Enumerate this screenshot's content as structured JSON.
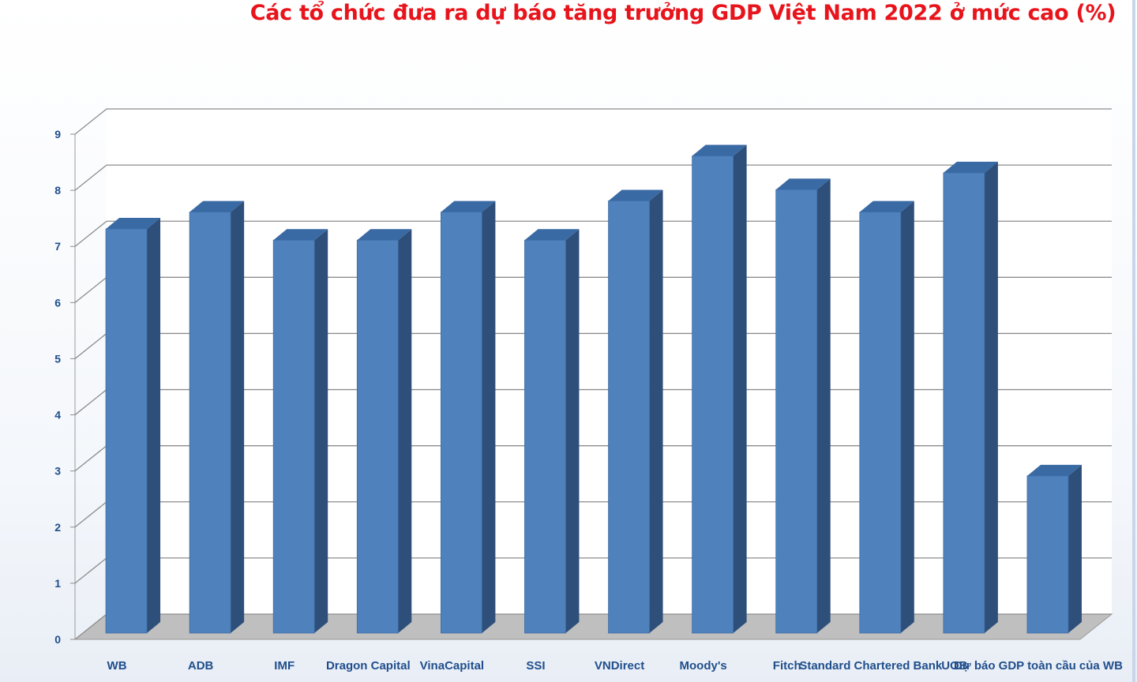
{
  "chart_data": {
    "type": "bar",
    "title": "Các tổ chức đưa ra dự báo tăng trưởng GDP Việt Nam 2022 ở mức cao (%)",
    "xlabel": "",
    "ylabel": "",
    "categories": [
      "WB",
      "ADB",
      "IMF",
      "Dragon Capital",
      "VinaCapital",
      "SSI",
      "VNDirect",
      "Moody's",
      "Fitch",
      "Standard Chartered Bank",
      "UOB",
      "Dự báo GDP toàn cầu của WB"
    ],
    "values": [
      7.2,
      7.5,
      7.0,
      7.0,
      7.5,
      7.0,
      7.7,
      8.5,
      7.9,
      7.5,
      8.2,
      2.8
    ],
    "yticks": [
      "0",
      "1",
      "2",
      "3",
      "4",
      "5",
      "6",
      "7",
      "8",
      "9"
    ],
    "ylim": [
      0,
      9
    ],
    "grid": true,
    "legend": "none",
    "bar_color": "#4f81bd",
    "bar_side_color": "#2e4f7a",
    "bar_top_color": "#3a6aa4"
  }
}
